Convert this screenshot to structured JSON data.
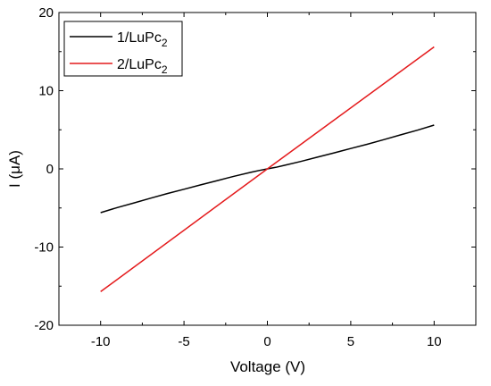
{
  "chart_data": {
    "type": "line",
    "xlabel": "Voltage (V)",
    "ylabel": "I (μA)",
    "xlim": [
      -12.5,
      12.5
    ],
    "ylim": [
      -20,
      20
    ],
    "xticks": [
      -10,
      -5,
      0,
      5,
      10
    ],
    "yticks": [
      -20,
      -10,
      0,
      10,
      20
    ],
    "xtick_labels": [
      "-10",
      "-5",
      "0",
      "5",
      "10"
    ],
    "ytick_labels": [
      "-20",
      "-10",
      "0",
      "10",
      "20"
    ],
    "grid": false,
    "legend_position": "top-left",
    "series": [
      {
        "name": "1/LuPc2",
        "color": "#000000",
        "x": [
          -10,
          -9,
          -8,
          -7,
          -6,
          -5,
          -4,
          -3,
          -2,
          -1,
          -0.5,
          0,
          0.5,
          1,
          2,
          3,
          4,
          5,
          6,
          7,
          8,
          9,
          10
        ],
        "y": [
          -5.6,
          -4.95,
          -4.35,
          -3.75,
          -3.15,
          -2.6,
          -2.05,
          -1.5,
          -0.95,
          -0.45,
          -0.2,
          0,
          0.2,
          0.45,
          0.95,
          1.5,
          2.05,
          2.6,
          3.15,
          3.75,
          4.35,
          4.95,
          5.6
        ]
      },
      {
        "name": "2/LuPc2",
        "color": "#e41a1c",
        "x": [
          -10,
          0,
          10
        ],
        "y": [
          -15.7,
          0,
          15.6
        ]
      }
    ]
  }
}
